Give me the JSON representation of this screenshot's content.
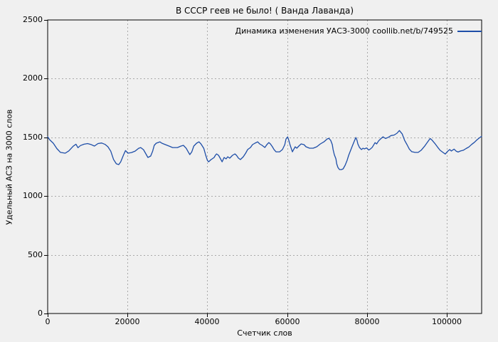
{
  "colors": {
    "background": "#f0f0f0",
    "plot_border": "#000000",
    "grid": "#a9a9a9",
    "line": "#1e4ea8",
    "text": "#000000"
  },
  "legend": {
    "label": "Динамика изменения УАСЗ-3000 coollib.net/b/749525"
  },
  "chart_data": {
    "type": "line",
    "title": "В СССР геев не было! ( Ванда Лаванда)",
    "xlabel": "Счетчик слов",
    "ylabel": "Удельный АСЗ на 3000 слов",
    "xlim": [
      0,
      108700
    ],
    "ylim": [
      0,
      2500
    ],
    "xticks": [
      0,
      20000,
      40000,
      60000,
      80000,
      100000
    ],
    "yticks": [
      0,
      500,
      1000,
      1500,
      2000,
      2500
    ],
    "grid": true,
    "legend_position": "top-right",
    "series": [
      {
        "name": "Динамика изменения УАСЗ-3000 coollib.net/b/749525",
        "color": "#1e4ea8",
        "points": [
          [
            0,
            1505
          ],
          [
            500,
            1480
          ],
          [
            1400,
            1450
          ],
          [
            2300,
            1405
          ],
          [
            3200,
            1372
          ],
          [
            4400,
            1365
          ],
          [
            5300,
            1385
          ],
          [
            6400,
            1425
          ],
          [
            7100,
            1442
          ],
          [
            7600,
            1412
          ],
          [
            8200,
            1430
          ],
          [
            9100,
            1442
          ],
          [
            10000,
            1447
          ],
          [
            10800,
            1440
          ],
          [
            11700,
            1426
          ],
          [
            12600,
            1447
          ],
          [
            13500,
            1452
          ],
          [
            14400,
            1440
          ],
          [
            15100,
            1420
          ],
          [
            15800,
            1382
          ],
          [
            16500,
            1312
          ],
          [
            17200,
            1275
          ],
          [
            17800,
            1268
          ],
          [
            18300,
            1292
          ],
          [
            19000,
            1350
          ],
          [
            19500,
            1388
          ],
          [
            20100,
            1365
          ],
          [
            21000,
            1371
          ],
          [
            21900,
            1383
          ],
          [
            22800,
            1407
          ],
          [
            23300,
            1413
          ],
          [
            24000,
            1395
          ],
          [
            24500,
            1365
          ],
          [
            25100,
            1329
          ],
          [
            25800,
            1341
          ],
          [
            26300,
            1383
          ],
          [
            26700,
            1432
          ],
          [
            27200,
            1450
          ],
          [
            28100,
            1462
          ],
          [
            28600,
            1450
          ],
          [
            29500,
            1438
          ],
          [
            30400,
            1426
          ],
          [
            31300,
            1413
          ],
          [
            32500,
            1413
          ],
          [
            33400,
            1426
          ],
          [
            34000,
            1432
          ],
          [
            34700,
            1407
          ],
          [
            35200,
            1377
          ],
          [
            35600,
            1353
          ],
          [
            36100,
            1377
          ],
          [
            36600,
            1426
          ],
          [
            37300,
            1450
          ],
          [
            37900,
            1462
          ],
          [
            38400,
            1444
          ],
          [
            39100,
            1407
          ],
          [
            39600,
            1347
          ],
          [
            40000,
            1304
          ],
          [
            40300,
            1292
          ],
          [
            40900,
            1310
          ],
          [
            41200,
            1317
          ],
          [
            41700,
            1329
          ],
          [
            42000,
            1347
          ],
          [
            42300,
            1359
          ],
          [
            42800,
            1347
          ],
          [
            43300,
            1317
          ],
          [
            43700,
            1292
          ],
          [
            44200,
            1329
          ],
          [
            44700,
            1317
          ],
          [
            45100,
            1335
          ],
          [
            45600,
            1323
          ],
          [
            46300,
            1347
          ],
          [
            46900,
            1359
          ],
          [
            47300,
            1347
          ],
          [
            47800,
            1323
          ],
          [
            48300,
            1311
          ],
          [
            49000,
            1335
          ],
          [
            49600,
            1365
          ],
          [
            50100,
            1396
          ],
          [
            50800,
            1414
          ],
          [
            51300,
            1438
          ],
          [
            51900,
            1450
          ],
          [
            52600,
            1462
          ],
          [
            53100,
            1444
          ],
          [
            53700,
            1432
          ],
          [
            54400,
            1414
          ],
          [
            54900,
            1438
          ],
          [
            55400,
            1456
          ],
          [
            55800,
            1444
          ],
          [
            56300,
            1420
          ],
          [
            56700,
            1396
          ],
          [
            57200,
            1377
          ],
          [
            58100,
            1377
          ],
          [
            58800,
            1396
          ],
          [
            59400,
            1438
          ],
          [
            59700,
            1486
          ],
          [
            60100,
            1504
          ],
          [
            60400,
            1474
          ],
          [
            60700,
            1438
          ],
          [
            61000,
            1408
          ],
          [
            61300,
            1377
          ],
          [
            61600,
            1396
          ],
          [
            62000,
            1420
          ],
          [
            62400,
            1408
          ],
          [
            62900,
            1426
          ],
          [
            63500,
            1444
          ],
          [
            64200,
            1438
          ],
          [
            64700,
            1420
          ],
          [
            65600,
            1408
          ],
          [
            66500,
            1408
          ],
          [
            67400,
            1420
          ],
          [
            68300,
            1444
          ],
          [
            69200,
            1462
          ],
          [
            70000,
            1486
          ],
          [
            70400,
            1492
          ],
          [
            70900,
            1474
          ],
          [
            71300,
            1438
          ],
          [
            71500,
            1396
          ],
          [
            71800,
            1353
          ],
          [
            72200,
            1317
          ],
          [
            72400,
            1274
          ],
          [
            72700,
            1244
          ],
          [
            73100,
            1226
          ],
          [
            73600,
            1226
          ],
          [
            74000,
            1232
          ],
          [
            74500,
            1262
          ],
          [
            75000,
            1304
          ],
          [
            75400,
            1347
          ],
          [
            75800,
            1383
          ],
          [
            76300,
            1426
          ],
          [
            76800,
            1468
          ],
          [
            77200,
            1499
          ],
          [
            77500,
            1474
          ],
          [
            77700,
            1444
          ],
          [
            78100,
            1414
          ],
          [
            78600,
            1396
          ],
          [
            79000,
            1408
          ],
          [
            79300,
            1402
          ],
          [
            79900,
            1410
          ],
          [
            80400,
            1392
          ],
          [
            80800,
            1400
          ],
          [
            81300,
            1415
          ],
          [
            82000,
            1455
          ],
          [
            82400,
            1444
          ],
          [
            82900,
            1470
          ],
          [
            83500,
            1490
          ],
          [
            84000,
            1505
          ],
          [
            84600,
            1490
          ],
          [
            85300,
            1500
          ],
          [
            86000,
            1515
          ],
          [
            86800,
            1520
          ],
          [
            87500,
            1535
          ],
          [
            88100,
            1558
          ],
          [
            88800,
            1530
          ],
          [
            89400,
            1475
          ],
          [
            90000,
            1438
          ],
          [
            90600,
            1400
          ],
          [
            91200,
            1378
          ],
          [
            92000,
            1372
          ],
          [
            92800,
            1372
          ],
          [
            93600,
            1392
          ],
          [
            94400,
            1425
          ],
          [
            95100,
            1458
          ],
          [
            95800,
            1490
          ],
          [
            96300,
            1476
          ],
          [
            97000,
            1448
          ],
          [
            97700,
            1415
          ],
          [
            98300,
            1390
          ],
          [
            99000,
            1372
          ],
          [
            99600,
            1358
          ],
          [
            100100,
            1378
          ],
          [
            100700,
            1396
          ],
          [
            101100,
            1384
          ],
          [
            101800,
            1400
          ],
          [
            102300,
            1383
          ],
          [
            102800,
            1375
          ],
          [
            103400,
            1384
          ],
          [
            104100,
            1390
          ],
          [
            104800,
            1405
          ],
          [
            105500,
            1418
          ],
          [
            106200,
            1440
          ],
          [
            106900,
            1458
          ],
          [
            107500,
            1478
          ],
          [
            108000,
            1492
          ],
          [
            108500,
            1505
          ],
          [
            108700,
            1508
          ]
        ]
      }
    ]
  }
}
